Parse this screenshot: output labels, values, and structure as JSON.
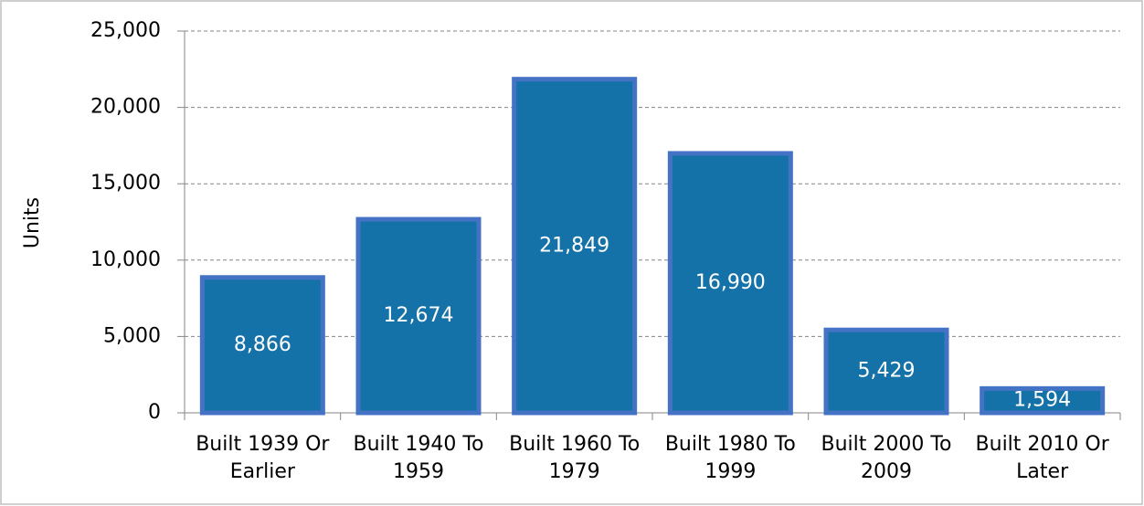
{
  "chart_data": {
    "type": "bar",
    "y_label": "Units",
    "categories": [
      "Built 1939 Or Earlier",
      "Built 1940 To 1959",
      "Built 1960 To 1979",
      "Built 1980 To 1999",
      "Built 2000 To 2009",
      "Built 2010 Or Later"
    ],
    "values": [
      8866,
      12674,
      21849,
      16990,
      5429,
      1594
    ],
    "value_labels": [
      "8,866",
      "12,674",
      "21,849",
      "16,990",
      "5,429",
      "1,594"
    ],
    "color": "#1572a8",
    "edge_color": "#4472c4",
    "ylim": [
      0,
      25000
    ],
    "yticks": [
      0,
      {
        "value": 5000,
        "label": "5,000"
      },
      {
        "value": 10000,
        "label": "10,000"
      },
      {
        "value": 15000,
        "label": "15,000"
      },
      {
        "value": 20000,
        "label": "20,000"
      },
      {
        "value": 25000,
        "label": "25,000"
      }
    ],
    "grid": true
  }
}
